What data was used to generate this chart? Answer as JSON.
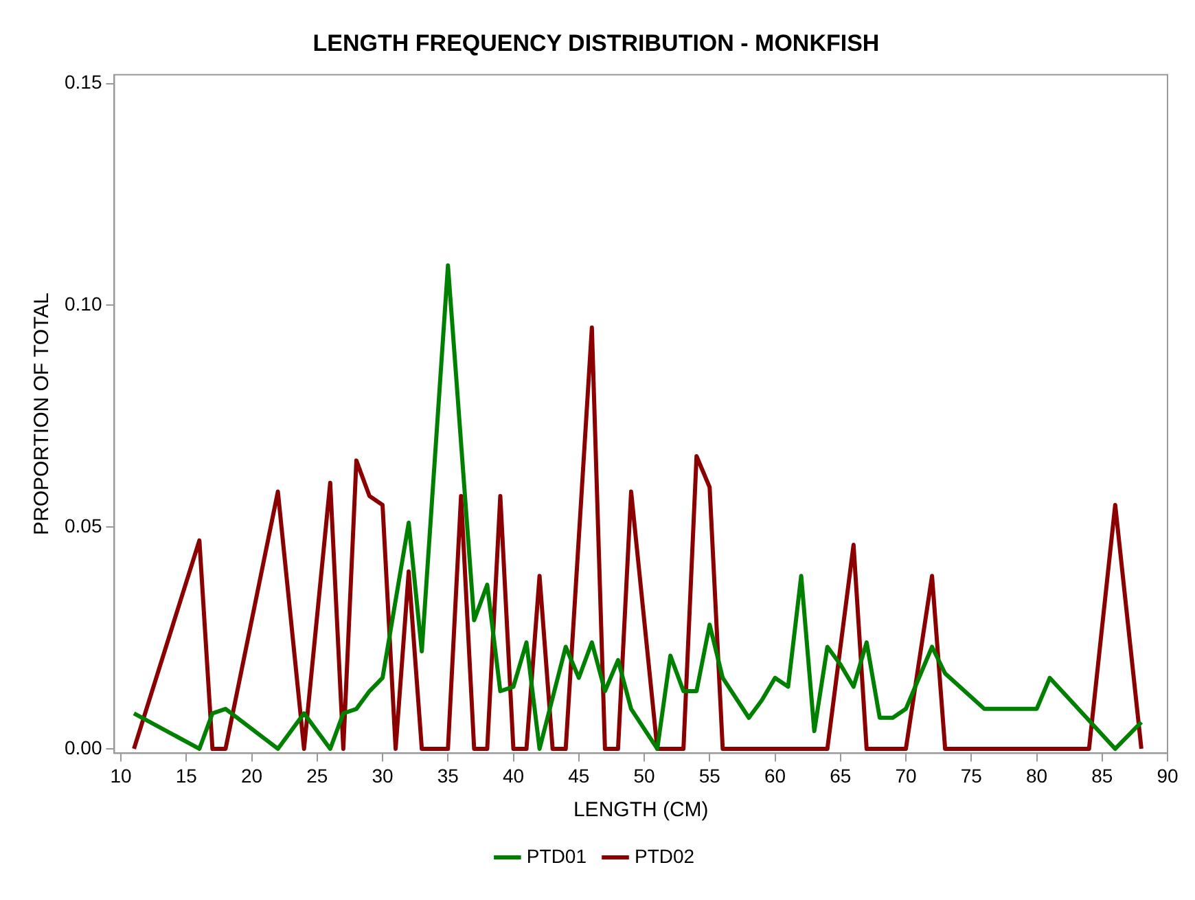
{
  "chart_data": {
    "type": "line",
    "title": "LENGTH FREQUENCY DISTRIBUTION - MONKFISH",
    "xlabel": "LENGTH (CM)",
    "ylabel": "PROPORTION OF TOTAL",
    "xlim": [
      9.5,
      90
    ],
    "xticks": [
      10,
      15,
      20,
      25,
      30,
      35,
      40,
      45,
      50,
      55,
      60,
      65,
      70,
      75,
      80,
      85,
      90
    ],
    "ylim": [
      -0.001,
      0.152
    ],
    "yticks": [
      {
        "value": 0,
        "label": "0.00"
      },
      {
        "value": 0.05,
        "label": "0.05"
      },
      {
        "value": 0.1,
        "label": "0.10"
      },
      {
        "value": 0.15,
        "label": "0.15"
      }
    ],
    "grid": false,
    "legend": "bottom",
    "marker": "none",
    "line_style": "solid",
    "series": [
      {
        "name": "PTD01",
        "color": "#008000",
        "x": [
          11,
          16,
          17,
          18,
          22,
          24,
          26,
          27,
          28,
          29,
          30,
          32,
          33,
          35,
          37,
          38,
          39,
          40,
          41,
          42,
          44,
          45,
          46,
          47,
          48,
          49,
          51,
          52,
          53,
          54,
          55,
          56,
          58,
          59,
          60,
          61,
          62,
          63,
          64,
          65,
          66,
          67,
          68,
          69,
          70,
          72,
          73,
          76,
          79,
          80,
          81,
          86,
          88
        ],
        "values": [
          0.008,
          0.0,
          0.008,
          0.009,
          0.0,
          0.008,
          0.0,
          0.008,
          0.009,
          0.013,
          0.016,
          0.051,
          0.022,
          0.109,
          0.029,
          0.037,
          0.013,
          0.014,
          0.024,
          0.0,
          0.023,
          0.016,
          0.024,
          0.013,
          0.02,
          0.009,
          0.0,
          0.021,
          0.013,
          0.013,
          0.028,
          0.016,
          0.007,
          0.011,
          0.016,
          0.014,
          0.039,
          0.004,
          0.023,
          0.019,
          0.014,
          0.024,
          0.007,
          0.007,
          0.009,
          0.023,
          0.017,
          0.009,
          0.009,
          0.009,
          0.016,
          0.0,
          0.006
        ]
      },
      {
        "name": "PTD02",
        "color": "#8b0000",
        "x": [
          11,
          16,
          17,
          18,
          22,
          24,
          26,
          27,
          28,
          29,
          30,
          31,
          32,
          33,
          35,
          36,
          37,
          38,
          39,
          40,
          41,
          42,
          43,
          44,
          46,
          47,
          48,
          49,
          51,
          53,
          54,
          55,
          56,
          64,
          66,
          67,
          70,
          72,
          73,
          84,
          86,
          88
        ],
        "values": [
          0.0,
          0.047,
          0.0,
          0.0,
          0.058,
          0.0,
          0.06,
          0.0,
          0.065,
          0.057,
          0.055,
          0.0,
          0.04,
          0.0,
          0.0,
          0.057,
          0.0,
          0.0,
          0.057,
          0.0,
          0.0,
          0.039,
          0.0,
          0.0,
          0.095,
          0.0,
          0.0,
          0.058,
          0.0,
          0.0,
          0.066,
          0.059,
          0.0,
          0.0,
          0.046,
          0.0,
          0.0,
          0.039,
          0.0,
          0.0,
          0.055,
          0.0
        ]
      }
    ]
  }
}
